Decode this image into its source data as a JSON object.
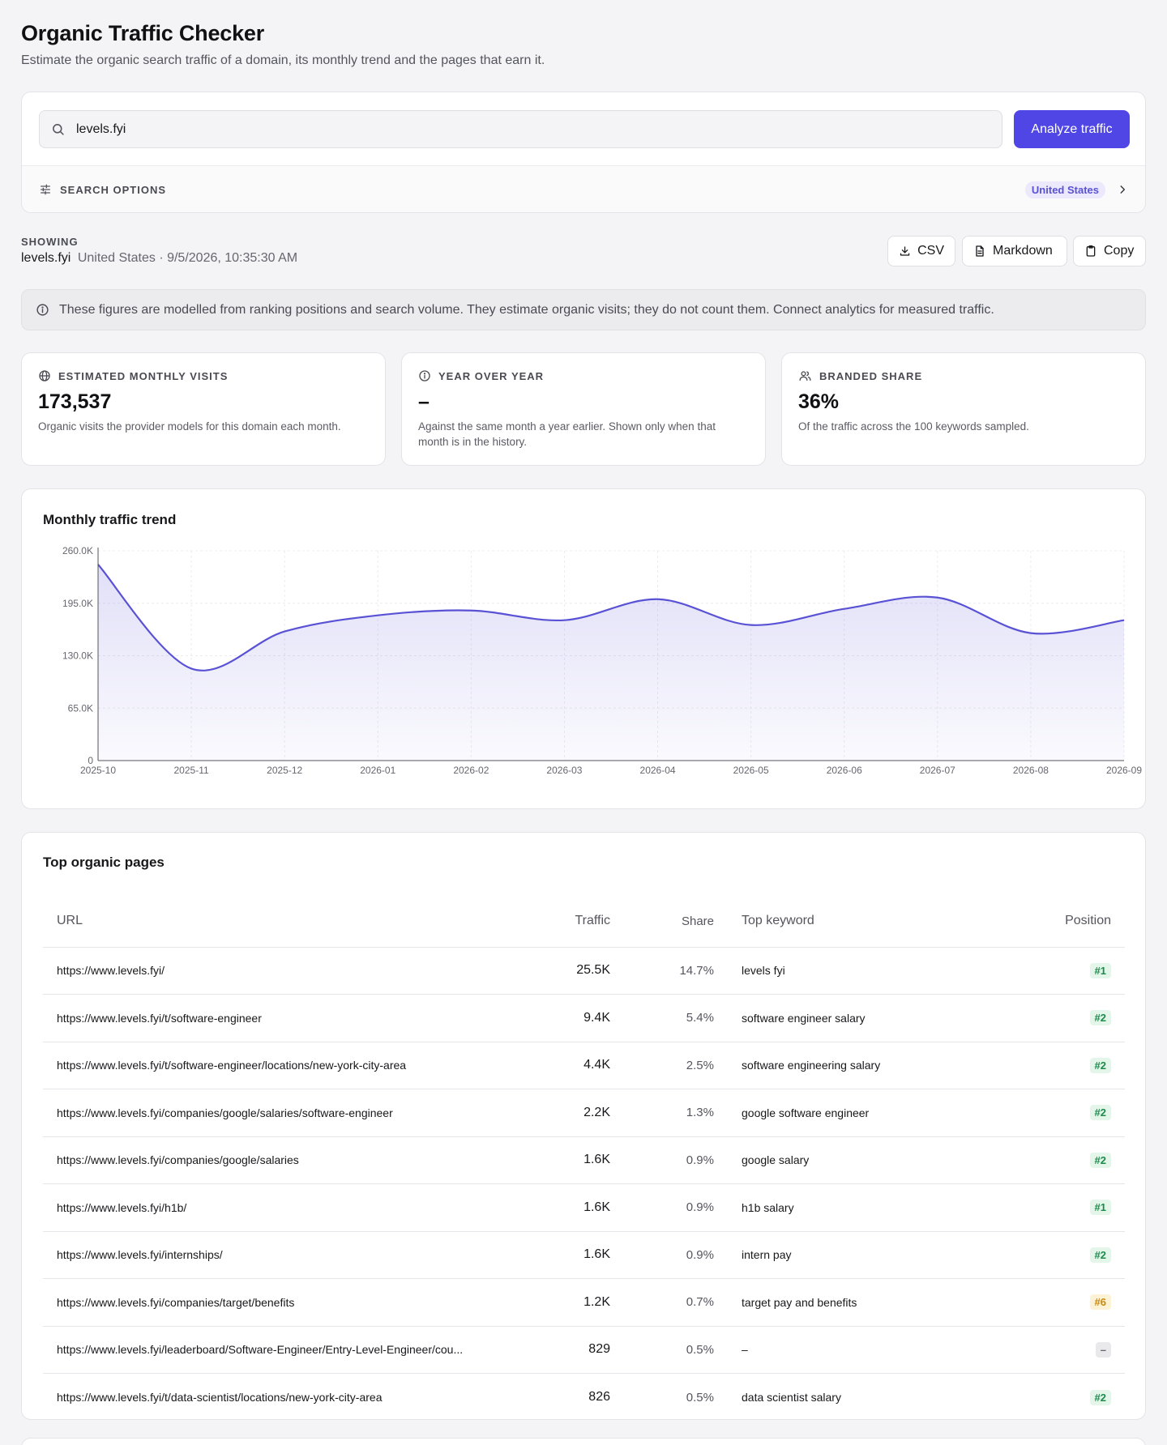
{
  "header": {
    "title": "Organic Traffic Checker",
    "subtitle": "Estimate the organic search traffic of a domain, its monthly trend and the pages that earn it."
  },
  "search": {
    "value": "levels.fyi",
    "button_label": "Analyze traffic",
    "options_label": "SEARCH OPTIONS",
    "country": "United States"
  },
  "showing": {
    "label": "SHOWING",
    "domain": "levels.fyi",
    "meta": "United States · 9/5/2026, 10:35:30 AM"
  },
  "export": {
    "csv": "CSV",
    "markdown": "Markdown",
    "copy": "Copy"
  },
  "notice": "These figures are modelled from ranking positions and search volume. They estimate organic visits; they do not count them. Connect analytics for measured traffic.",
  "stats": [
    {
      "label": "ESTIMATED MONTHLY VISITS",
      "value": "173,537",
      "desc": "Organic visits the provider models for this domain each month.",
      "icon": "globe-icon"
    },
    {
      "label": "YEAR OVER YEAR",
      "value": "–",
      "desc": "Against the same month a year earlier. Shown only when that month is in the history.",
      "icon": "info-icon"
    },
    {
      "label": "BRANDED SHARE",
      "value": "36%",
      "desc": "Of the traffic across the 100 keywords sampled.",
      "icon": "users-icon"
    }
  ],
  "chart_data": {
    "type": "area",
    "title": "Monthly traffic trend",
    "categories": [
      "2025-10",
      "2025-11",
      "2025-12",
      "2026-01",
      "2026-02",
      "2026-03",
      "2026-04",
      "2026-05",
      "2026-06",
      "2026-07",
      "2026-08",
      "2026-09"
    ],
    "values": [
      243000,
      114000,
      160000,
      180000,
      186000,
      174000,
      200000,
      168000,
      188000,
      202000,
      158000,
      174000
    ],
    "ylim": [
      0,
      260000
    ],
    "yticks": [
      "0",
      "65.0K",
      "130.0K",
      "195.0K",
      "260.0K"
    ],
    "grid": true,
    "color": "#5a52d5"
  },
  "pages": {
    "title": "Top organic pages",
    "columns": {
      "url": "URL",
      "traffic": "Traffic",
      "share": "Share",
      "keyword": "Top keyword",
      "position": "Position"
    },
    "rows": [
      {
        "url": "https://www.levels.fyi/",
        "traffic": "25.5K",
        "share": "14.7%",
        "keyword": "levels fyi",
        "position": "#1",
        "tone": "green"
      },
      {
        "url": "https://www.levels.fyi/t/software-engineer",
        "traffic": "9.4K",
        "share": "5.4%",
        "keyword": "software engineer salary",
        "position": "#2",
        "tone": "green"
      },
      {
        "url": "https://www.levels.fyi/t/software-engineer/locations/new-york-city-area",
        "traffic": "4.4K",
        "share": "2.5%",
        "keyword": "software engineering salary",
        "position": "#2",
        "tone": "green"
      },
      {
        "url": "https://www.levels.fyi/companies/google/salaries/software-engineer",
        "traffic": "2.2K",
        "share": "1.3%",
        "keyword": "google software engineer",
        "position": "#2",
        "tone": "green"
      },
      {
        "url": "https://www.levels.fyi/companies/google/salaries",
        "traffic": "1.6K",
        "share": "0.9%",
        "keyword": "google salary",
        "position": "#2",
        "tone": "green"
      },
      {
        "url": "https://www.levels.fyi/h1b/",
        "traffic": "1.6K",
        "share": "0.9%",
        "keyword": "h1b salary",
        "position": "#1",
        "tone": "green"
      },
      {
        "url": "https://www.levels.fyi/internships/",
        "traffic": "1.6K",
        "share": "0.9%",
        "keyword": "intern pay",
        "position": "#2",
        "tone": "green"
      },
      {
        "url": "https://www.levels.fyi/companies/target/benefits",
        "traffic": "1.2K",
        "share": "0.7%",
        "keyword": "target pay and benefits",
        "position": "#6",
        "tone": "amber"
      },
      {
        "url": "https://www.levels.fyi/leaderboard/Software-Engineer/Entry-Level-Engineer/cou...",
        "traffic": "829",
        "share": "0.5%",
        "keyword": "–",
        "position": "–",
        "tone": "gray"
      },
      {
        "url": "https://www.levels.fyi/t/data-scientist/locations/new-york-city-area",
        "traffic": "826",
        "share": "0.5%",
        "keyword": "data scientist salary",
        "position": "#2",
        "tone": "green"
      }
    ]
  }
}
